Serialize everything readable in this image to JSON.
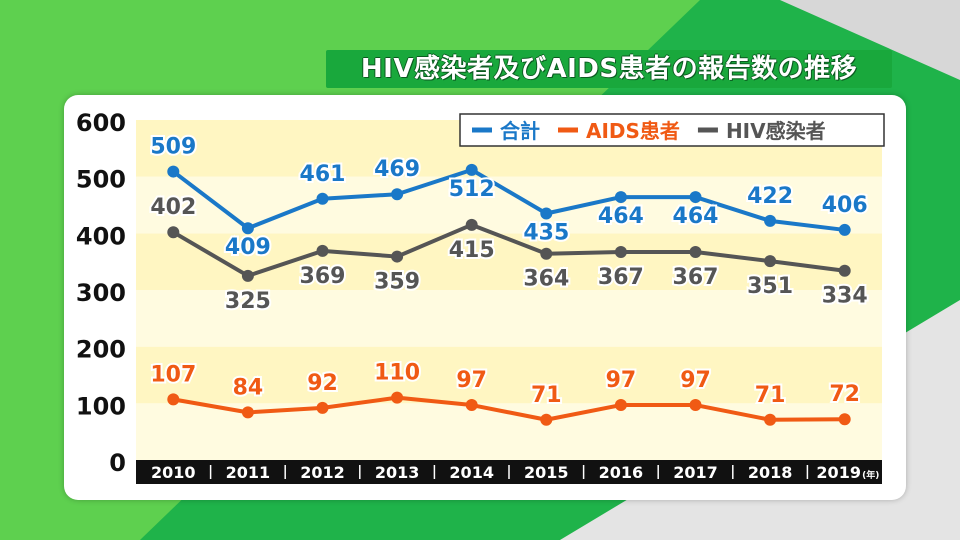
{
  "title": "HIV感染者及びAIDS患者の報告数の推移",
  "chart_data": {
    "type": "line",
    "categories": [
      "2010",
      "2011",
      "2012",
      "2013",
      "2014",
      "2015",
      "2016",
      "2017",
      "2018",
      "2019"
    ],
    "x_unit": "(年)",
    "ylim": [
      0,
      600
    ],
    "yticks": [
      "0",
      "100",
      "200",
      "300",
      "400",
      "500",
      "600"
    ],
    "legend_position": "top-right",
    "series": [
      {
        "name": "合計",
        "color": "#1a78c8",
        "values": [
          509,
          409,
          461,
          469,
          512,
          435,
          464,
          464,
          422,
          406
        ]
      },
      {
        "name": "AIDS患者",
        "color": "#f05a14",
        "values": [
          107,
          84,
          92,
          110,
          97,
          71,
          97,
          97,
          71,
          72
        ]
      },
      {
        "name": "HIV感染者",
        "color": "#555555",
        "values": [
          402,
          325,
          369,
          359,
          415,
          364,
          367,
          367,
          351,
          334
        ]
      }
    ]
  }
}
